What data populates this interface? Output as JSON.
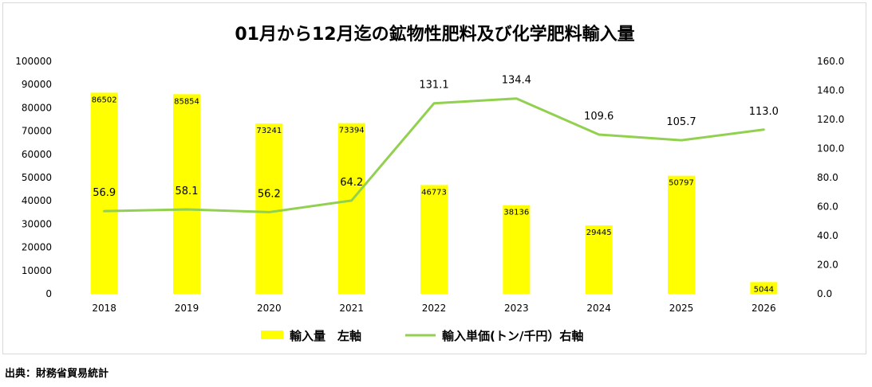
{
  "chart_data": {
    "type": "bar+line",
    "title": "01月から12月迄の鉱物性肥料及び化学肥料輸入量",
    "categories": [
      "2018",
      "2019",
      "2020",
      "2021",
      "2022",
      "2023",
      "2024",
      "2025",
      "2026"
    ],
    "series": [
      {
        "name": "輸入量　左軸",
        "type": "bar",
        "axis": "left",
        "color": "#ffff00",
        "values": [
          86502,
          85854,
          73241,
          73394,
          46773,
          38136,
          29445,
          50797,
          5044
        ],
        "labels": [
          "86502",
          "85854",
          "73241",
          "73394",
          "46773",
          "38136",
          "29445",
          "50797",
          "5044"
        ]
      },
      {
        "name": "輸入単価(トン/千円）右軸",
        "type": "line",
        "axis": "right",
        "color": "#92d050",
        "values": [
          56.9,
          58.1,
          56.2,
          64.2,
          131.1,
          134.4,
          109.6,
          105.7,
          113.0
        ],
        "labels": [
          "56.9",
          "58.1",
          "56.2",
          "64.2",
          "131.1",
          "134.4",
          "109.6",
          "105.7",
          "113.0"
        ]
      }
    ],
    "left_axis": {
      "range": [
        0,
        100000
      ],
      "ticks": [
        "0",
        "10000",
        "20000",
        "30000",
        "40000",
        "50000",
        "60000",
        "70000",
        "80000",
        "90000",
        "100000"
      ]
    },
    "right_axis": {
      "range": [
        0,
        160
      ],
      "ticks": [
        "0.0",
        "20.0",
        "40.0",
        "60.0",
        "80.0",
        "100.0",
        "120.0",
        "140.0",
        "160.0"
      ]
    },
    "grid": false,
    "legend": "bottom"
  },
  "source": "出典：財務省貿易統計"
}
